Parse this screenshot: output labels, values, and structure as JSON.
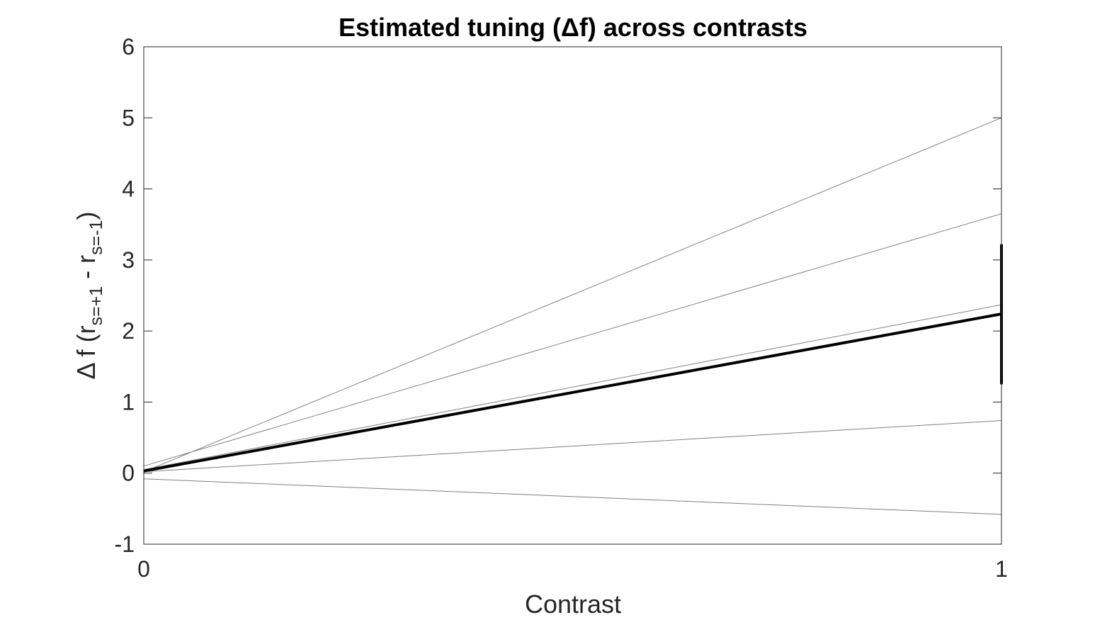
{
  "chart_data": {
    "type": "line",
    "title": "Estimated tuning (Δf) across contrasts",
    "xlabel": "Contrast",
    "ylabel": {
      "prefix": "Δ f (r",
      "sub1": "s=+1",
      "middle": " - r",
      "sub2": "s=-1",
      "suffix": ")"
    },
    "xlim": [
      0,
      1
    ],
    "ylim": [
      -1,
      6
    ],
    "xticks": [
      "0",
      "1"
    ],
    "yticks": [
      "-1",
      "0",
      "1",
      "2",
      "3",
      "4",
      "5",
      "6"
    ],
    "grid": false,
    "series": [
      {
        "values": [
          0.02,
          5.0
        ],
        "color": "#808080",
        "width": 1
      },
      {
        "values": [
          0.1,
          3.65
        ],
        "color": "#808080",
        "width": 1
      },
      {
        "values": [
          0.05,
          2.37
        ],
        "color": "#808080",
        "width": 1
      },
      {
        "values": [
          0.02,
          0.74
        ],
        "color": "#808080",
        "width": 1
      },
      {
        "values": [
          -0.08,
          -0.58
        ],
        "color": "#808080",
        "width": 1
      },
      {
        "values": [
          0.03,
          2.24
        ],
        "color": "#000000",
        "width": 4
      }
    ],
    "x": [
      0,
      1
    ],
    "error_bar": {
      "x": 1,
      "low": 1.25,
      "high": 3.22,
      "color": "#000000"
    }
  }
}
